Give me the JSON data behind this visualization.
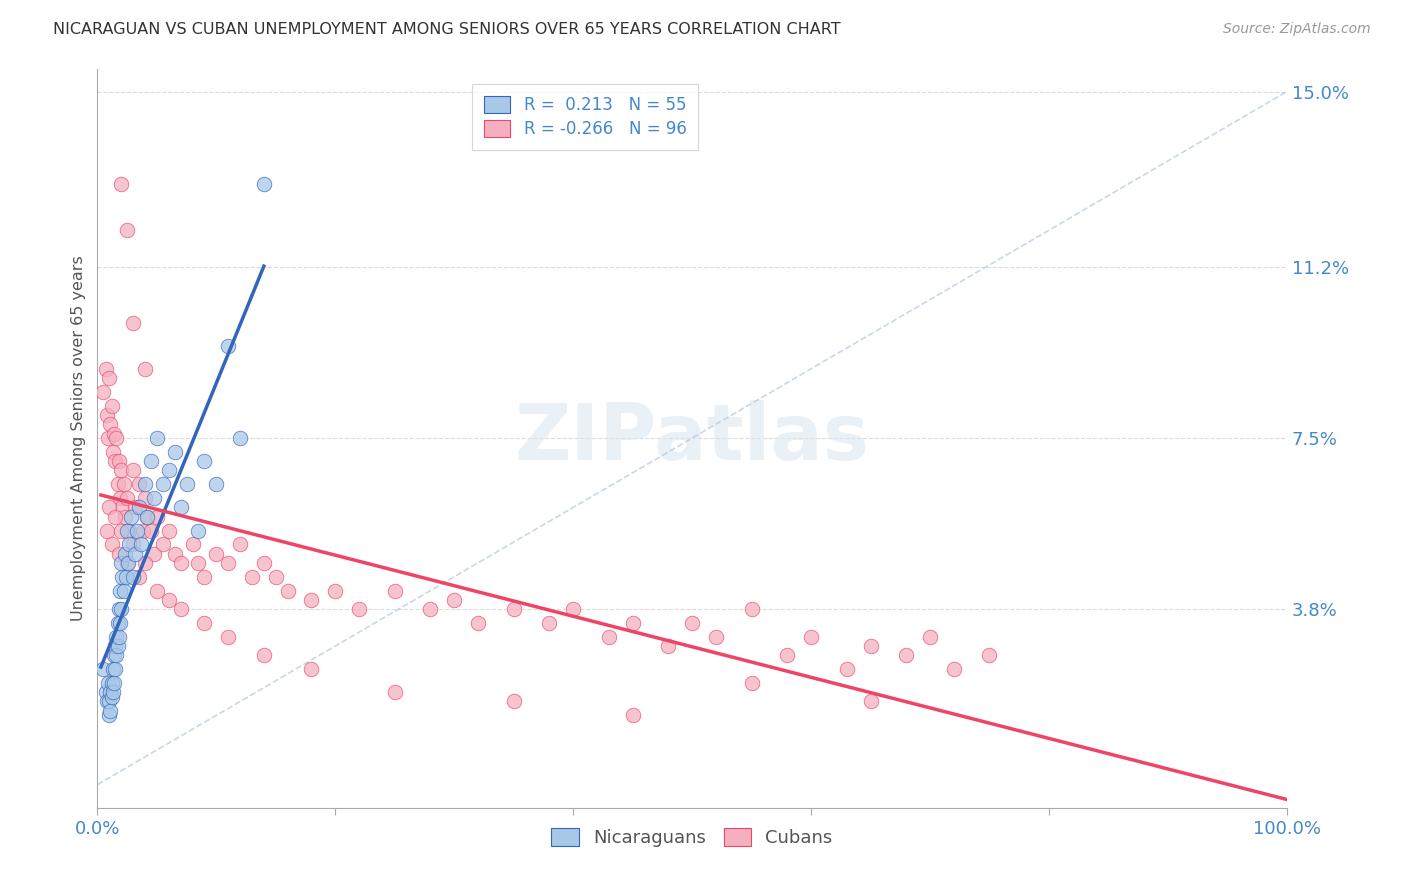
{
  "title": "NICARAGUAN VS CUBAN UNEMPLOYMENT AMONG SENIORS OVER 65 YEARS CORRELATION CHART",
  "source": "Source: ZipAtlas.com",
  "ylabel": "Unemployment Among Seniors over 65 years",
  "xlim": [
    0,
    1.0
  ],
  "ylim": [
    -0.005,
    0.155
  ],
  "ytick_positions": [
    0.038,
    0.075,
    0.112,
    0.15
  ],
  "ytick_labels": [
    "3.8%",
    "7.5%",
    "11.2%",
    "15.0%"
  ],
  "nicaraguan_color": "#a8c8e8",
  "cuban_color": "#f4b0c0",
  "nicaraguan_line_color": "#3366bb",
  "cuban_line_color": "#ee4466",
  "watermark_text": "ZIPatlas",
  "background_color": "#ffffff",
  "grid_color": "#cccccc",
  "title_color": "#333333",
  "axis_label_color": "#555555",
  "tick_label_color": "#4488cc",
  "nicaraguan_x": [
    0.005,
    0.007,
    0.008,
    0.009,
    0.01,
    0.01,
    0.011,
    0.011,
    0.012,
    0.012,
    0.013,
    0.013,
    0.014,
    0.014,
    0.015,
    0.015,
    0.016,
    0.016,
    0.017,
    0.017,
    0.018,
    0.018,
    0.019,
    0.019,
    0.02,
    0.02,
    0.021,
    0.022,
    0.023,
    0.024,
    0.025,
    0.026,
    0.027,
    0.028,
    0.03,
    0.032,
    0.033,
    0.035,
    0.037,
    0.04,
    0.042,
    0.045,
    0.048,
    0.05,
    0.055,
    0.06,
    0.065,
    0.07,
    0.075,
    0.085,
    0.09,
    0.1,
    0.11,
    0.12,
    0.14
  ],
  "nicaraguan_y": [
    0.025,
    0.02,
    0.018,
    0.022,
    0.015,
    0.018,
    0.02,
    0.016,
    0.022,
    0.019,
    0.025,
    0.02,
    0.028,
    0.022,
    0.03,
    0.025,
    0.032,
    0.028,
    0.035,
    0.03,
    0.038,
    0.032,
    0.042,
    0.035,
    0.048,
    0.038,
    0.045,
    0.042,
    0.05,
    0.045,
    0.055,
    0.048,
    0.052,
    0.058,
    0.045,
    0.05,
    0.055,
    0.06,
    0.052,
    0.065,
    0.058,
    0.07,
    0.062,
    0.075,
    0.065,
    0.068,
    0.072,
    0.06,
    0.065,
    0.055,
    0.07,
    0.065,
    0.095,
    0.075,
    0.13
  ],
  "cuban_x": [
    0.005,
    0.007,
    0.008,
    0.009,
    0.01,
    0.011,
    0.012,
    0.013,
    0.014,
    0.015,
    0.016,
    0.017,
    0.018,
    0.019,
    0.02,
    0.021,
    0.022,
    0.023,
    0.025,
    0.027,
    0.03,
    0.032,
    0.035,
    0.038,
    0.04,
    0.042,
    0.045,
    0.048,
    0.05,
    0.055,
    0.06,
    0.065,
    0.07,
    0.08,
    0.085,
    0.09,
    0.1,
    0.11,
    0.12,
    0.13,
    0.14,
    0.15,
    0.16,
    0.18,
    0.2,
    0.22,
    0.25,
    0.28,
    0.3,
    0.32,
    0.35,
    0.38,
    0.4,
    0.43,
    0.45,
    0.48,
    0.5,
    0.52,
    0.55,
    0.58,
    0.6,
    0.63,
    0.65,
    0.68,
    0.7,
    0.72,
    0.75,
    0.008,
    0.01,
    0.012,
    0.015,
    0.018,
    0.02,
    0.025,
    0.03,
    0.035,
    0.04,
    0.05,
    0.06,
    0.07,
    0.09,
    0.11,
    0.14,
    0.18,
    0.25,
    0.35,
    0.45,
    0.55,
    0.65,
    0.02,
    0.025,
    0.03,
    0.04
  ],
  "cuban_y": [
    0.085,
    0.09,
    0.08,
    0.075,
    0.088,
    0.078,
    0.082,
    0.072,
    0.076,
    0.07,
    0.075,
    0.065,
    0.07,
    0.062,
    0.068,
    0.06,
    0.065,
    0.058,
    0.062,
    0.055,
    0.068,
    0.06,
    0.065,
    0.055,
    0.062,
    0.058,
    0.055,
    0.05,
    0.058,
    0.052,
    0.055,
    0.05,
    0.048,
    0.052,
    0.048,
    0.045,
    0.05,
    0.048,
    0.052,
    0.045,
    0.048,
    0.045,
    0.042,
    0.04,
    0.042,
    0.038,
    0.042,
    0.038,
    0.04,
    0.035,
    0.038,
    0.035,
    0.038,
    0.032,
    0.035,
    0.03,
    0.035,
    0.032,
    0.038,
    0.028,
    0.032,
    0.025,
    0.03,
    0.028,
    0.032,
    0.025,
    0.028,
    0.055,
    0.06,
    0.052,
    0.058,
    0.05,
    0.055,
    0.048,
    0.052,
    0.045,
    0.048,
    0.042,
    0.04,
    0.038,
    0.035,
    0.032,
    0.028,
    0.025,
    0.02,
    0.018,
    0.015,
    0.022,
    0.018,
    0.13,
    0.12,
    0.1,
    0.09
  ]
}
